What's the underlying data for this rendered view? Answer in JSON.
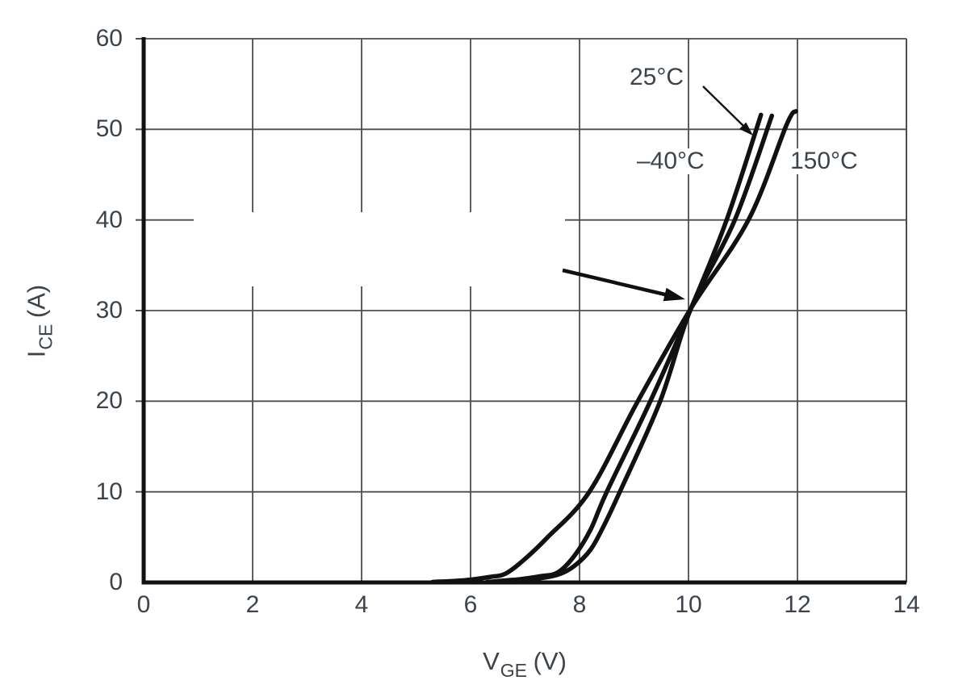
{
  "figure": {
    "background": "#ffffff",
    "text_color": "#3d434b",
    "curve_color": "#111111",
    "grid_color": "#4d4d4d"
  },
  "chart_data": {
    "type": "line",
    "title": "",
    "xlabel": "VGE (V)",
    "ylabel": "ICE (A)",
    "xlabel_parts": {
      "base": "V",
      "sub": "GE",
      "suffix": " (V)"
    },
    "ylabel_parts": {
      "base": "I",
      "sub": "CE",
      "suffix": " (A)"
    },
    "xlim": [
      0,
      14
    ],
    "ylim": [
      0,
      60
    ],
    "xticks": [
      0,
      2,
      4,
      6,
      8,
      10,
      12,
      14
    ],
    "yticks": [
      0,
      10,
      20,
      30,
      40,
      50,
      60
    ],
    "grid": true,
    "legend_position": "inline-labels",
    "series": [
      {
        "name": "25°C",
        "temperature_c": 25,
        "points": [
          [
            6.3,
            0.05
          ],
          [
            6.9,
            0.35
          ],
          [
            7.3,
            0.7
          ],
          [
            7.6,
            1.1
          ],
          [
            7.9,
            2.9
          ],
          [
            8.2,
            5.8
          ],
          [
            8.5,
            10
          ],
          [
            9.3,
            20
          ],
          [
            10.05,
            30.3
          ],
          [
            10.7,
            40
          ],
          [
            11.33,
            51.6
          ]
        ]
      },
      {
        "name": "–40°C",
        "temperature_c": -40,
        "points": [
          [
            6.6,
            0.05
          ],
          [
            7.2,
            0.4
          ],
          [
            7.6,
            0.85
          ],
          [
            7.9,
            1.8
          ],
          [
            8.2,
            3.6
          ],
          [
            8.45,
            6.3
          ],
          [
            8.74,
            10
          ],
          [
            9.48,
            20
          ],
          [
            10.05,
            30.3
          ],
          [
            10.85,
            40
          ],
          [
            11.53,
            51.5
          ]
        ]
      },
      {
        "name": "150°C",
        "temperature_c": 150,
        "points": [
          [
            5.3,
            0.05
          ],
          [
            5.9,
            0.25
          ],
          [
            6.35,
            0.6
          ],
          [
            6.65,
            1.0
          ],
          [
            7.0,
            2.6
          ],
          [
            7.4,
            4.9
          ],
          [
            8.18,
            10
          ],
          [
            9.07,
            20
          ],
          [
            10.05,
            30.3
          ],
          [
            11.1,
            40
          ],
          [
            11.8,
            50.5
          ],
          [
            11.97,
            52
          ]
        ]
      }
    ],
    "annotations": [
      {
        "type": "arrow",
        "description": "bold arrow pointing at curve crossover",
        "target_x": 10,
        "target_y": 31
      },
      {
        "type": "leader-arrow",
        "description": "thin leader from 25°C label down to its curve"
      }
    ]
  }
}
